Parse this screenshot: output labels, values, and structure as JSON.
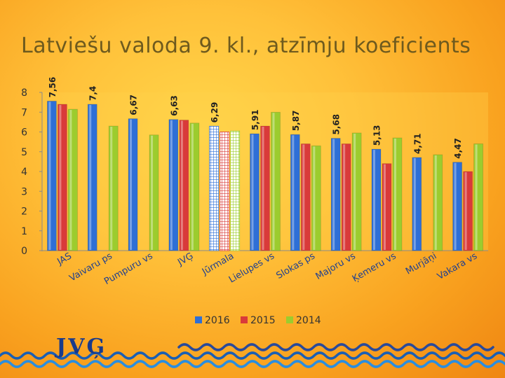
{
  "title": "Latviešu valoda 9. kl., atzīmju koeficients",
  "logo_text": "JVĢ",
  "chart_data": {
    "type": "bar",
    "categories": [
      "JAS",
      "Vaivaru ps",
      "Pumpuru vs",
      "JVĢ",
      "Jūrmala",
      "Lielupes vs",
      "Slokas ps",
      "Majoru vs",
      "Ķemeru vs",
      "Murjāņi",
      "Vakara vs"
    ],
    "series": [
      {
        "name": "2016",
        "color": "#2e6fd6",
        "values": [
          7.56,
          7.4,
          6.67,
          6.63,
          6.29,
          5.91,
          5.87,
          5.68,
          5.13,
          4.71,
          4.47
        ]
      },
      {
        "name": "2015",
        "color": "#d93a3a",
        "values": [
          7.4,
          null,
          null,
          6.6,
          6.0,
          6.3,
          5.4,
          5.4,
          4.4,
          null,
          4.0
        ]
      },
      {
        "name": "2014",
        "color": "#9ccc2e",
        "values": [
          7.15,
          6.3,
          5.85,
          6.45,
          6.05,
          7.0,
          5.3,
          5.95,
          5.7,
          4.85,
          5.4
        ]
      }
    ],
    "data_labels": [
      "7,56",
      "7,4",
      "6,67",
      "6,63",
      "6,29",
      "5,91",
      "5,87",
      "5,68",
      "5,13",
      "4,71",
      "4,47"
    ],
    "y_ticks": [
      "0",
      "1",
      "2",
      "3",
      "4",
      "5",
      "6",
      "7",
      "8"
    ],
    "ylim": [
      0,
      8
    ],
    "highlight_category": "Jūrmala",
    "legend_position": "bottom",
    "grid": false
  }
}
